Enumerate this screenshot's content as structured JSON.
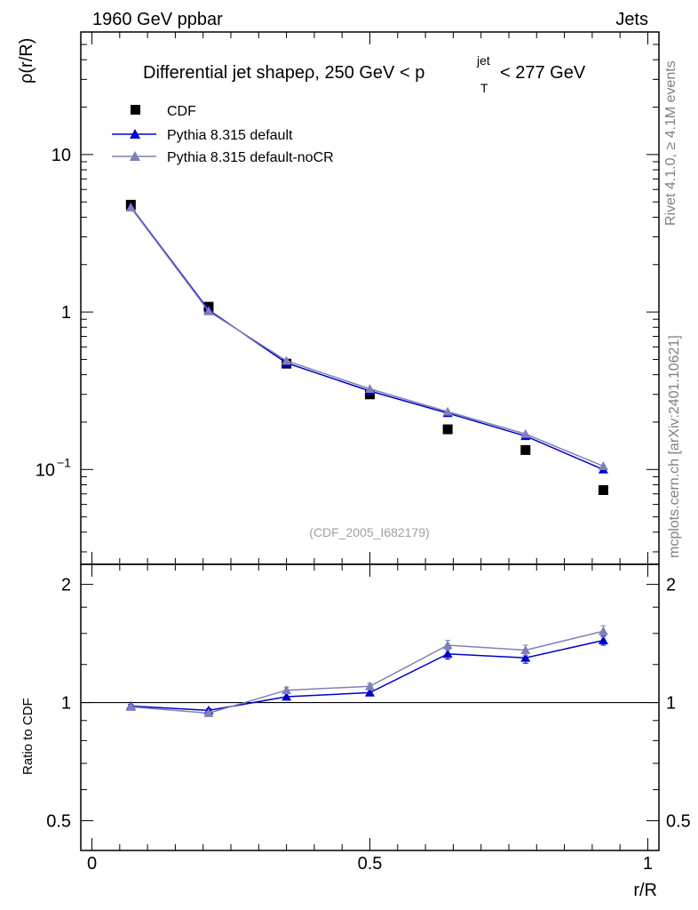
{
  "header": {
    "left": "1960 GeV ppbar",
    "right": "Jets"
  },
  "side_labels": {
    "rivet": "Rivet 4.1.0, ≥ 4.1M events",
    "mcplots": "mcplots.cern.ch [arXiv:2401.10621]"
  },
  "chart_data": {
    "type": "line",
    "title": "Differential jet shapeρ, 250 GeV < p_T^jet < 277 GeV",
    "title_parts": {
      "prefix": "Differential jet shapeρ, 250 GeV < p",
      "sup": "jet",
      "sub": "T",
      "suffix": "< 277 GeV"
    },
    "analysis_label": "(CDF_2005_I682179)",
    "xlabel": "r/R",
    "ylabel": "ρ(r/R)",
    "ratio_ylabel": "Ratio to CDF",
    "x": [
      0.07,
      0.21,
      0.35,
      0.5,
      0.64,
      0.78,
      0.92
    ],
    "xlim": [
      -0.02,
      1.02
    ],
    "ylim": [
      0.025,
      60
    ],
    "yscale": "log",
    "ratio_ylim": [
      0.42,
      2.25
    ],
    "ratio_yscale": "log",
    "x_ticks": [
      "0",
      "0.5",
      "1"
    ],
    "x_tick_values": [
      0,
      0.5,
      1
    ],
    "y_ticks": [
      {
        "value": 10,
        "label": "10"
      },
      {
        "value": 1,
        "label": "1"
      },
      {
        "value": 0.1,
        "label": "10",
        "sup": "−1"
      }
    ],
    "ratio_ticks": [
      {
        "value": 2,
        "label": "2"
      },
      {
        "value": 1,
        "label": "1"
      },
      {
        "value": 0.5,
        "label": "0.5"
      }
    ],
    "series": [
      {
        "name": "CDF",
        "marker": "square",
        "color": "#000000",
        "values": [
          4.8,
          1.08,
          0.47,
          0.3,
          0.18,
          0.133,
          0.074
        ]
      },
      {
        "name": "Pythia 8.315 default",
        "marker": "triangle",
        "color": "#0000cc",
        "values": [
          4.65,
          1.03,
          0.475,
          0.315,
          0.228,
          0.163,
          0.1
        ],
        "ratio": [
          0.98,
          0.955,
          1.035,
          1.06,
          1.33,
          1.3,
          1.44
        ],
        "ratio_err": [
          0.01,
          0.01,
          0.02,
          0.02,
          0.04,
          0.04,
          0.04
        ]
      },
      {
        "name": "Pythia 8.315 default-noCR",
        "marker": "triangle",
        "color": "#8080b8",
        "values": [
          4.6,
          1.01,
          0.49,
          0.325,
          0.233,
          0.168,
          0.105
        ],
        "ratio": [
          0.975,
          0.94,
          1.075,
          1.1,
          1.4,
          1.36,
          1.52
        ],
        "ratio_err": [
          0.01,
          0.01,
          0.02,
          0.02,
          0.04,
          0.04,
          0.05
        ]
      }
    ]
  }
}
